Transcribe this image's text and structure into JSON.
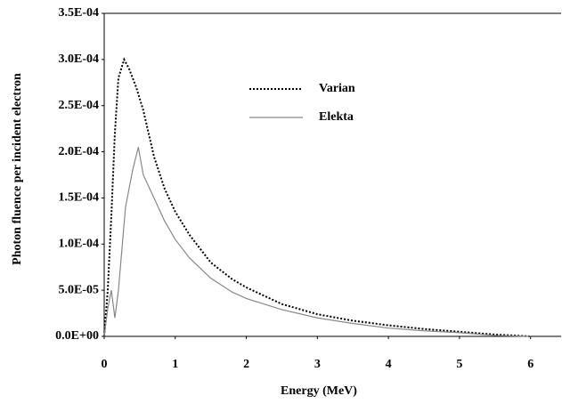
{
  "chart_data": {
    "type": "line",
    "x_label": "Energy (MeV)",
    "y_label": "Photon fluence per incident electron",
    "xlim": [
      0,
      6.43
    ],
    "xticks": [
      0,
      1,
      2,
      3,
      4,
      5,
      6
    ],
    "ylim": [
      0,
      0.00035
    ],
    "yticks": [
      {
        "value": 0,
        "label": "0.0E+00"
      },
      {
        "value": 5e-05,
        "label": "5.0E-05"
      },
      {
        "value": 0.0001,
        "label": "1.0E-04"
      },
      {
        "value": 0.00015,
        "label": "1.5E-04"
      },
      {
        "value": 0.0002,
        "label": "2.0E-04"
      },
      {
        "value": 0.00025,
        "label": "2.5E-04"
      },
      {
        "value": 0.0003,
        "label": "3.0E-04"
      },
      {
        "value": 0.00035,
        "label": "3.5E-04"
      }
    ],
    "legend": "upper-center",
    "series": [
      {
        "name": "Varian",
        "color": "#000000",
        "style": "dotted",
        "x": [
          0,
          0.05,
          0.1,
          0.15,
          0.2,
          0.28,
          0.35,
          0.45,
          0.55,
          0.7,
          0.85,
          1.0,
          1.2,
          1.5,
          1.8,
          2.0,
          2.5,
          3.0,
          3.5,
          4.0,
          4.5,
          5.0,
          5.5,
          6.0
        ],
        "values": [
          0,
          5e-05,
          0.00013,
          0.00022,
          0.00028,
          0.0003,
          0.00029,
          0.00027,
          0.000245,
          0.000195,
          0.00016,
          0.000135,
          0.00011,
          8e-05,
          6.2e-05,
          5.3e-05,
          3.5e-05,
          2.4e-05,
          1.7e-05,
          1.2e-05,
          8e-06,
          5e-06,
          2e-06,
          0
        ]
      },
      {
        "name": "Elekta",
        "color": "#888888",
        "style": "solid",
        "x": [
          0,
          0.05,
          0.1,
          0.15,
          0.2,
          0.3,
          0.4,
          0.48,
          0.55,
          0.7,
          0.85,
          1.0,
          1.2,
          1.5,
          1.8,
          2.0,
          2.5,
          3.0,
          3.5,
          4.0,
          4.5,
          5.0,
          5.5,
          6.0
        ],
        "values": [
          0,
          3e-05,
          5e-05,
          2e-05,
          5e-05,
          0.00014,
          0.00018,
          0.000205,
          0.000175,
          0.00015,
          0.000125,
          0.000105,
          8.5e-05,
          6.3e-05,
          4.8e-05,
          4.1e-05,
          2.9e-05,
          2e-05,
          1.4e-05,
          9e-06,
          6e-06,
          4e-06,
          1e-06,
          0
        ]
      }
    ]
  }
}
